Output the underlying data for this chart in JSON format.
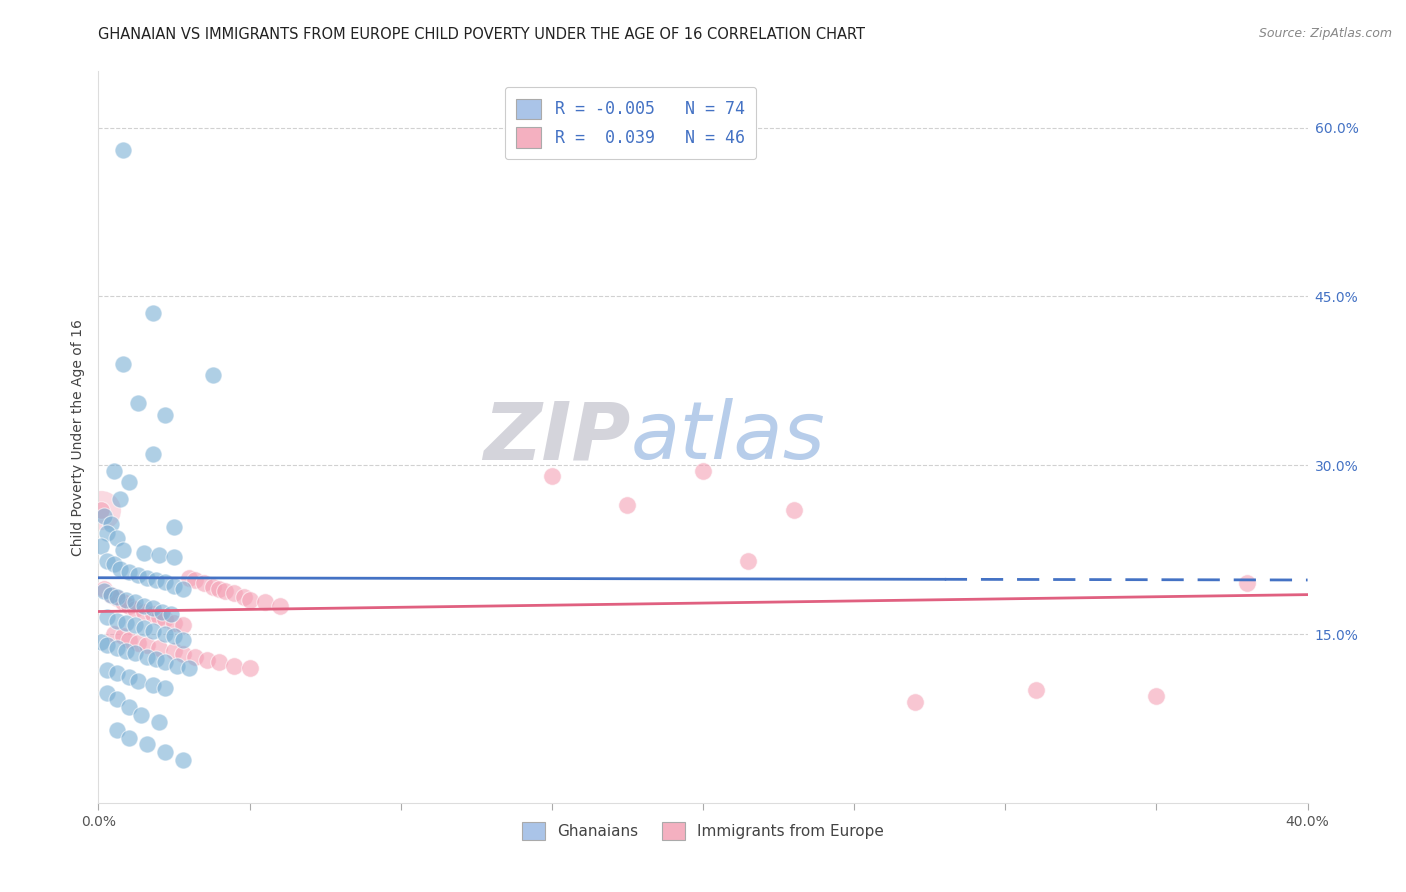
{
  "title": "GHANAIAN VS IMMIGRANTS FROM EUROPE CHILD POVERTY UNDER THE AGE OF 16 CORRELATION CHART",
  "source": "Source: ZipAtlas.com",
  "ylabel": "Child Poverty Under the Age of 16",
  "xlim": [
    0.0,
    0.4
  ],
  "ylim": [
    0.0,
    0.65
  ],
  "xticks": [
    0.0,
    0.05,
    0.1,
    0.15,
    0.2,
    0.25,
    0.3,
    0.35,
    0.4
  ],
  "ytick_labels_right": [
    "60.0%",
    "45.0%",
    "30.0%",
    "15.0%"
  ],
  "yticks_right": [
    0.6,
    0.45,
    0.3,
    0.15
  ],
  "legend_entries": [
    {
      "label_r": "R = -0.005",
      "label_n": "N = 74",
      "color": "#aac4e8"
    },
    {
      "label_r": "R =  0.039",
      "label_n": "N = 46",
      "color": "#f4b0c0"
    }
  ],
  "legend_labels_bottom": [
    "Ghanaians",
    "Immigrants from Europe"
  ],
  "ghanaian_color": "#7bafd4",
  "immigrant_color": "#f4a0b5",
  "ghanaian_line_color": "#4472c4",
  "immigrant_line_color": "#e06080",
  "watermark_zip": "ZIP",
  "watermark_atlas": "atlas",
  "watermark_zip_color": "#d0d0d8",
  "watermark_atlas_color": "#b0c8e8",
  "ghanaian_points": [
    [
      0.008,
      0.58
    ],
    [
      0.018,
      0.435
    ],
    [
      0.008,
      0.39
    ],
    [
      0.038,
      0.38
    ],
    [
      0.013,
      0.355
    ],
    [
      0.022,
      0.345
    ],
    [
      0.018,
      0.31
    ],
    [
      0.005,
      0.295
    ],
    [
      0.01,
      0.285
    ],
    [
      0.007,
      0.27
    ],
    [
      0.002,
      0.255
    ],
    [
      0.004,
      0.248
    ],
    [
      0.025,
      0.245
    ],
    [
      0.003,
      0.24
    ],
    [
      0.006,
      0.235
    ],
    [
      0.001,
      0.228
    ],
    [
      0.008,
      0.225
    ],
    [
      0.015,
      0.222
    ],
    [
      0.02,
      0.22
    ],
    [
      0.025,
      0.218
    ],
    [
      0.003,
      0.215
    ],
    [
      0.005,
      0.212
    ],
    [
      0.007,
      0.208
    ],
    [
      0.01,
      0.205
    ],
    [
      0.013,
      0.202
    ],
    [
      0.016,
      0.2
    ],
    [
      0.019,
      0.198
    ],
    [
      0.022,
      0.196
    ],
    [
      0.025,
      0.193
    ],
    [
      0.028,
      0.19
    ],
    [
      0.002,
      0.188
    ],
    [
      0.004,
      0.185
    ],
    [
      0.006,
      0.183
    ],
    [
      0.009,
      0.18
    ],
    [
      0.012,
      0.178
    ],
    [
      0.015,
      0.175
    ],
    [
      0.018,
      0.173
    ],
    [
      0.021,
      0.17
    ],
    [
      0.024,
      0.168
    ],
    [
      0.003,
      0.165
    ],
    [
      0.006,
      0.162
    ],
    [
      0.009,
      0.16
    ],
    [
      0.012,
      0.158
    ],
    [
      0.015,
      0.155
    ],
    [
      0.018,
      0.153
    ],
    [
      0.022,
      0.15
    ],
    [
      0.025,
      0.148
    ],
    [
      0.028,
      0.145
    ],
    [
      0.001,
      0.143
    ],
    [
      0.003,
      0.14
    ],
    [
      0.006,
      0.138
    ],
    [
      0.009,
      0.135
    ],
    [
      0.012,
      0.133
    ],
    [
      0.016,
      0.13
    ],
    [
      0.019,
      0.128
    ],
    [
      0.022,
      0.125
    ],
    [
      0.026,
      0.122
    ],
    [
      0.03,
      0.12
    ],
    [
      0.003,
      0.118
    ],
    [
      0.006,
      0.115
    ],
    [
      0.01,
      0.112
    ],
    [
      0.013,
      0.108
    ],
    [
      0.018,
      0.105
    ],
    [
      0.022,
      0.102
    ],
    [
      0.003,
      0.098
    ],
    [
      0.006,
      0.092
    ],
    [
      0.01,
      0.085
    ],
    [
      0.014,
      0.078
    ],
    [
      0.02,
      0.072
    ],
    [
      0.006,
      0.065
    ],
    [
      0.01,
      0.058
    ],
    [
      0.016,
      0.052
    ],
    [
      0.022,
      0.045
    ],
    [
      0.028,
      0.038
    ]
  ],
  "immigrant_points": [
    [
      0.001,
      0.26
    ],
    [
      0.002,
      0.19
    ],
    [
      0.004,
      0.185
    ],
    [
      0.006,
      0.182
    ],
    [
      0.008,
      0.178
    ],
    [
      0.01,
      0.175
    ],
    [
      0.012,
      0.172
    ],
    [
      0.015,
      0.17
    ],
    [
      0.018,
      0.168
    ],
    [
      0.02,
      0.165
    ],
    [
      0.022,
      0.163
    ],
    [
      0.025,
      0.16
    ],
    [
      0.028,
      0.158
    ],
    [
      0.03,
      0.2
    ],
    [
      0.032,
      0.198
    ],
    [
      0.035,
      0.195
    ],
    [
      0.038,
      0.192
    ],
    [
      0.04,
      0.19
    ],
    [
      0.042,
      0.188
    ],
    [
      0.045,
      0.186
    ],
    [
      0.048,
      0.183
    ],
    [
      0.05,
      0.18
    ],
    [
      0.055,
      0.178
    ],
    [
      0.06,
      0.175
    ],
    [
      0.005,
      0.15
    ],
    [
      0.008,
      0.148
    ],
    [
      0.01,
      0.145
    ],
    [
      0.013,
      0.142
    ],
    [
      0.016,
      0.14
    ],
    [
      0.02,
      0.138
    ],
    [
      0.025,
      0.135
    ],
    [
      0.028,
      0.132
    ],
    [
      0.032,
      0.13
    ],
    [
      0.036,
      0.127
    ],
    [
      0.04,
      0.125
    ],
    [
      0.045,
      0.122
    ],
    [
      0.05,
      0.12
    ],
    [
      0.15,
      0.29
    ],
    [
      0.175,
      0.265
    ],
    [
      0.2,
      0.295
    ],
    [
      0.215,
      0.215
    ],
    [
      0.23,
      0.26
    ],
    [
      0.27,
      0.09
    ],
    [
      0.31,
      0.1
    ],
    [
      0.35,
      0.095
    ],
    [
      0.38,
      0.195
    ]
  ],
  "background_color": "#ffffff",
  "grid_color": "#cccccc",
  "title_fontsize": 10.5,
  "axis_label_fontsize": 10,
  "tick_fontsize": 10
}
